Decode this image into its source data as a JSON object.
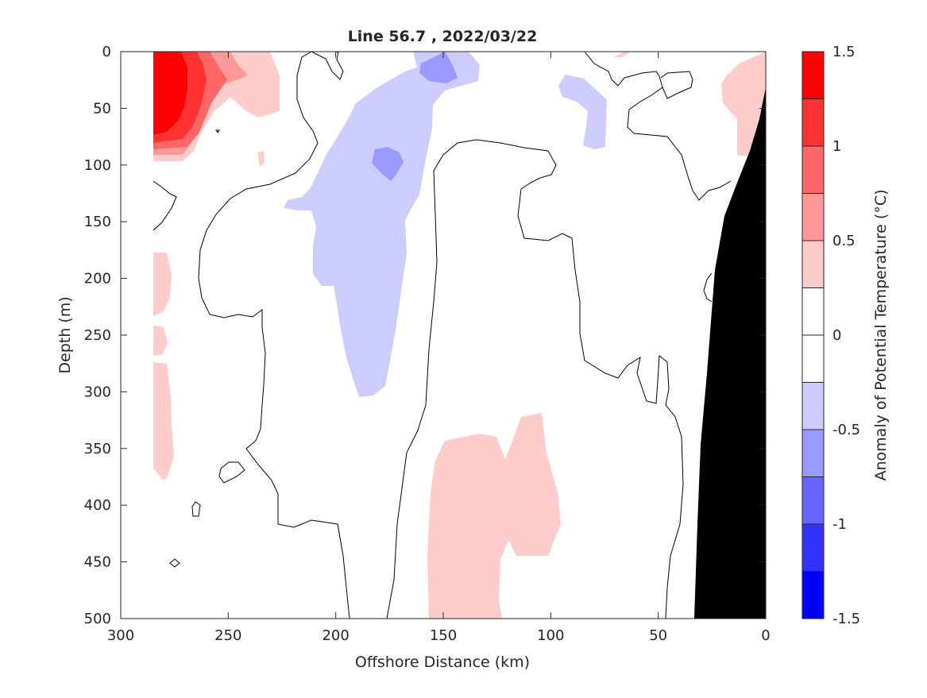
{
  "chart_data": {
    "type": "contour",
    "title": "Line 56.7 , 2022/03/22",
    "xlabel": "Offshore Distance (km)",
    "ylabel": "Depth (m)",
    "x_direction": "reversed",
    "y_direction": "reversed",
    "xlim": [
      300,
      0
    ],
    "ylim": [
      500,
      0
    ],
    "x_ticks": [
      300,
      250,
      200,
      150,
      100,
      50,
      0
    ],
    "y_ticks": [
      0,
      50,
      100,
      150,
      200,
      250,
      300,
      350,
      400,
      450,
      500
    ],
    "colorbar": {
      "label": "Anomaly of Potential Temperature (°C)",
      "range": [
        -1.5,
        1.5
      ],
      "levels": [
        -1.5,
        -1.25,
        -1.0,
        -0.75,
        -0.5,
        -0.25,
        0,
        0.25,
        0.5,
        0.75,
        1.0,
        1.25,
        1.5
      ],
      "tick_labels": [
        "-1.5",
        "-1",
        "-0.5",
        "0",
        "0.5",
        "1",
        "1.5"
      ],
      "colors": [
        "#0000ff",
        "#3333ff",
        "#6666ff",
        "#9999ff",
        "#ccccff",
        "#ffffff",
        "#ffffff",
        "#ffcccc",
        "#ff9999",
        "#ff6666",
        "#ff3333",
        "#ff0000"
      ]
    },
    "regions": [
      {
        "anomaly": "1.25 to 1.5",
        "distance_km": [
          268,
          285
        ],
        "depth_m": [
          0,
          70
        ]
      },
      {
        "anomaly": "0.25 to 0.5",
        "distance_km": [
          228,
          285
        ],
        "depth_m": [
          0,
          97
        ]
      },
      {
        "anomaly": "0.25 to 0.5",
        "distance_km": [
          0,
          32
        ],
        "depth_m": [
          0,
          95
        ]
      },
      {
        "anomaly": "0.25 to 0.5",
        "distance_km": [
          97,
          158
        ],
        "depth_m": [
          320,
          500
        ]
      },
      {
        "anomaly": "0.25 to 0.5",
        "distance_km": [
          276,
          285
        ],
        "depth_m": [
          175,
          380
        ]
      },
      {
        "anomaly": "-0.5 to -0.25",
        "distance_km": [
          155,
          224
        ],
        "depth_m": [
          50,
          305
        ]
      },
      {
        "anomaly": "-0.5 to -0.25",
        "distance_km": [
          133,
          170
        ],
        "depth_m": [
          0,
          50
        ]
      },
      {
        "anomaly": "-0.5 to -0.25",
        "distance_km": [
          75,
          97
        ],
        "depth_m": [
          20,
          88
        ]
      },
      {
        "anomaly": "-0.75 to -0.5",
        "distance_km": [
          145,
          160
        ],
        "depth_m": [
          0,
          30
        ]
      },
      {
        "anomaly": "-0.75 to -0.5",
        "distance_km": [
          170,
          185
        ],
        "depth_m": [
          85,
          115
        ]
      }
    ],
    "bathymetry": {
      "label": "land / seafloor",
      "color": "#000000"
    }
  }
}
